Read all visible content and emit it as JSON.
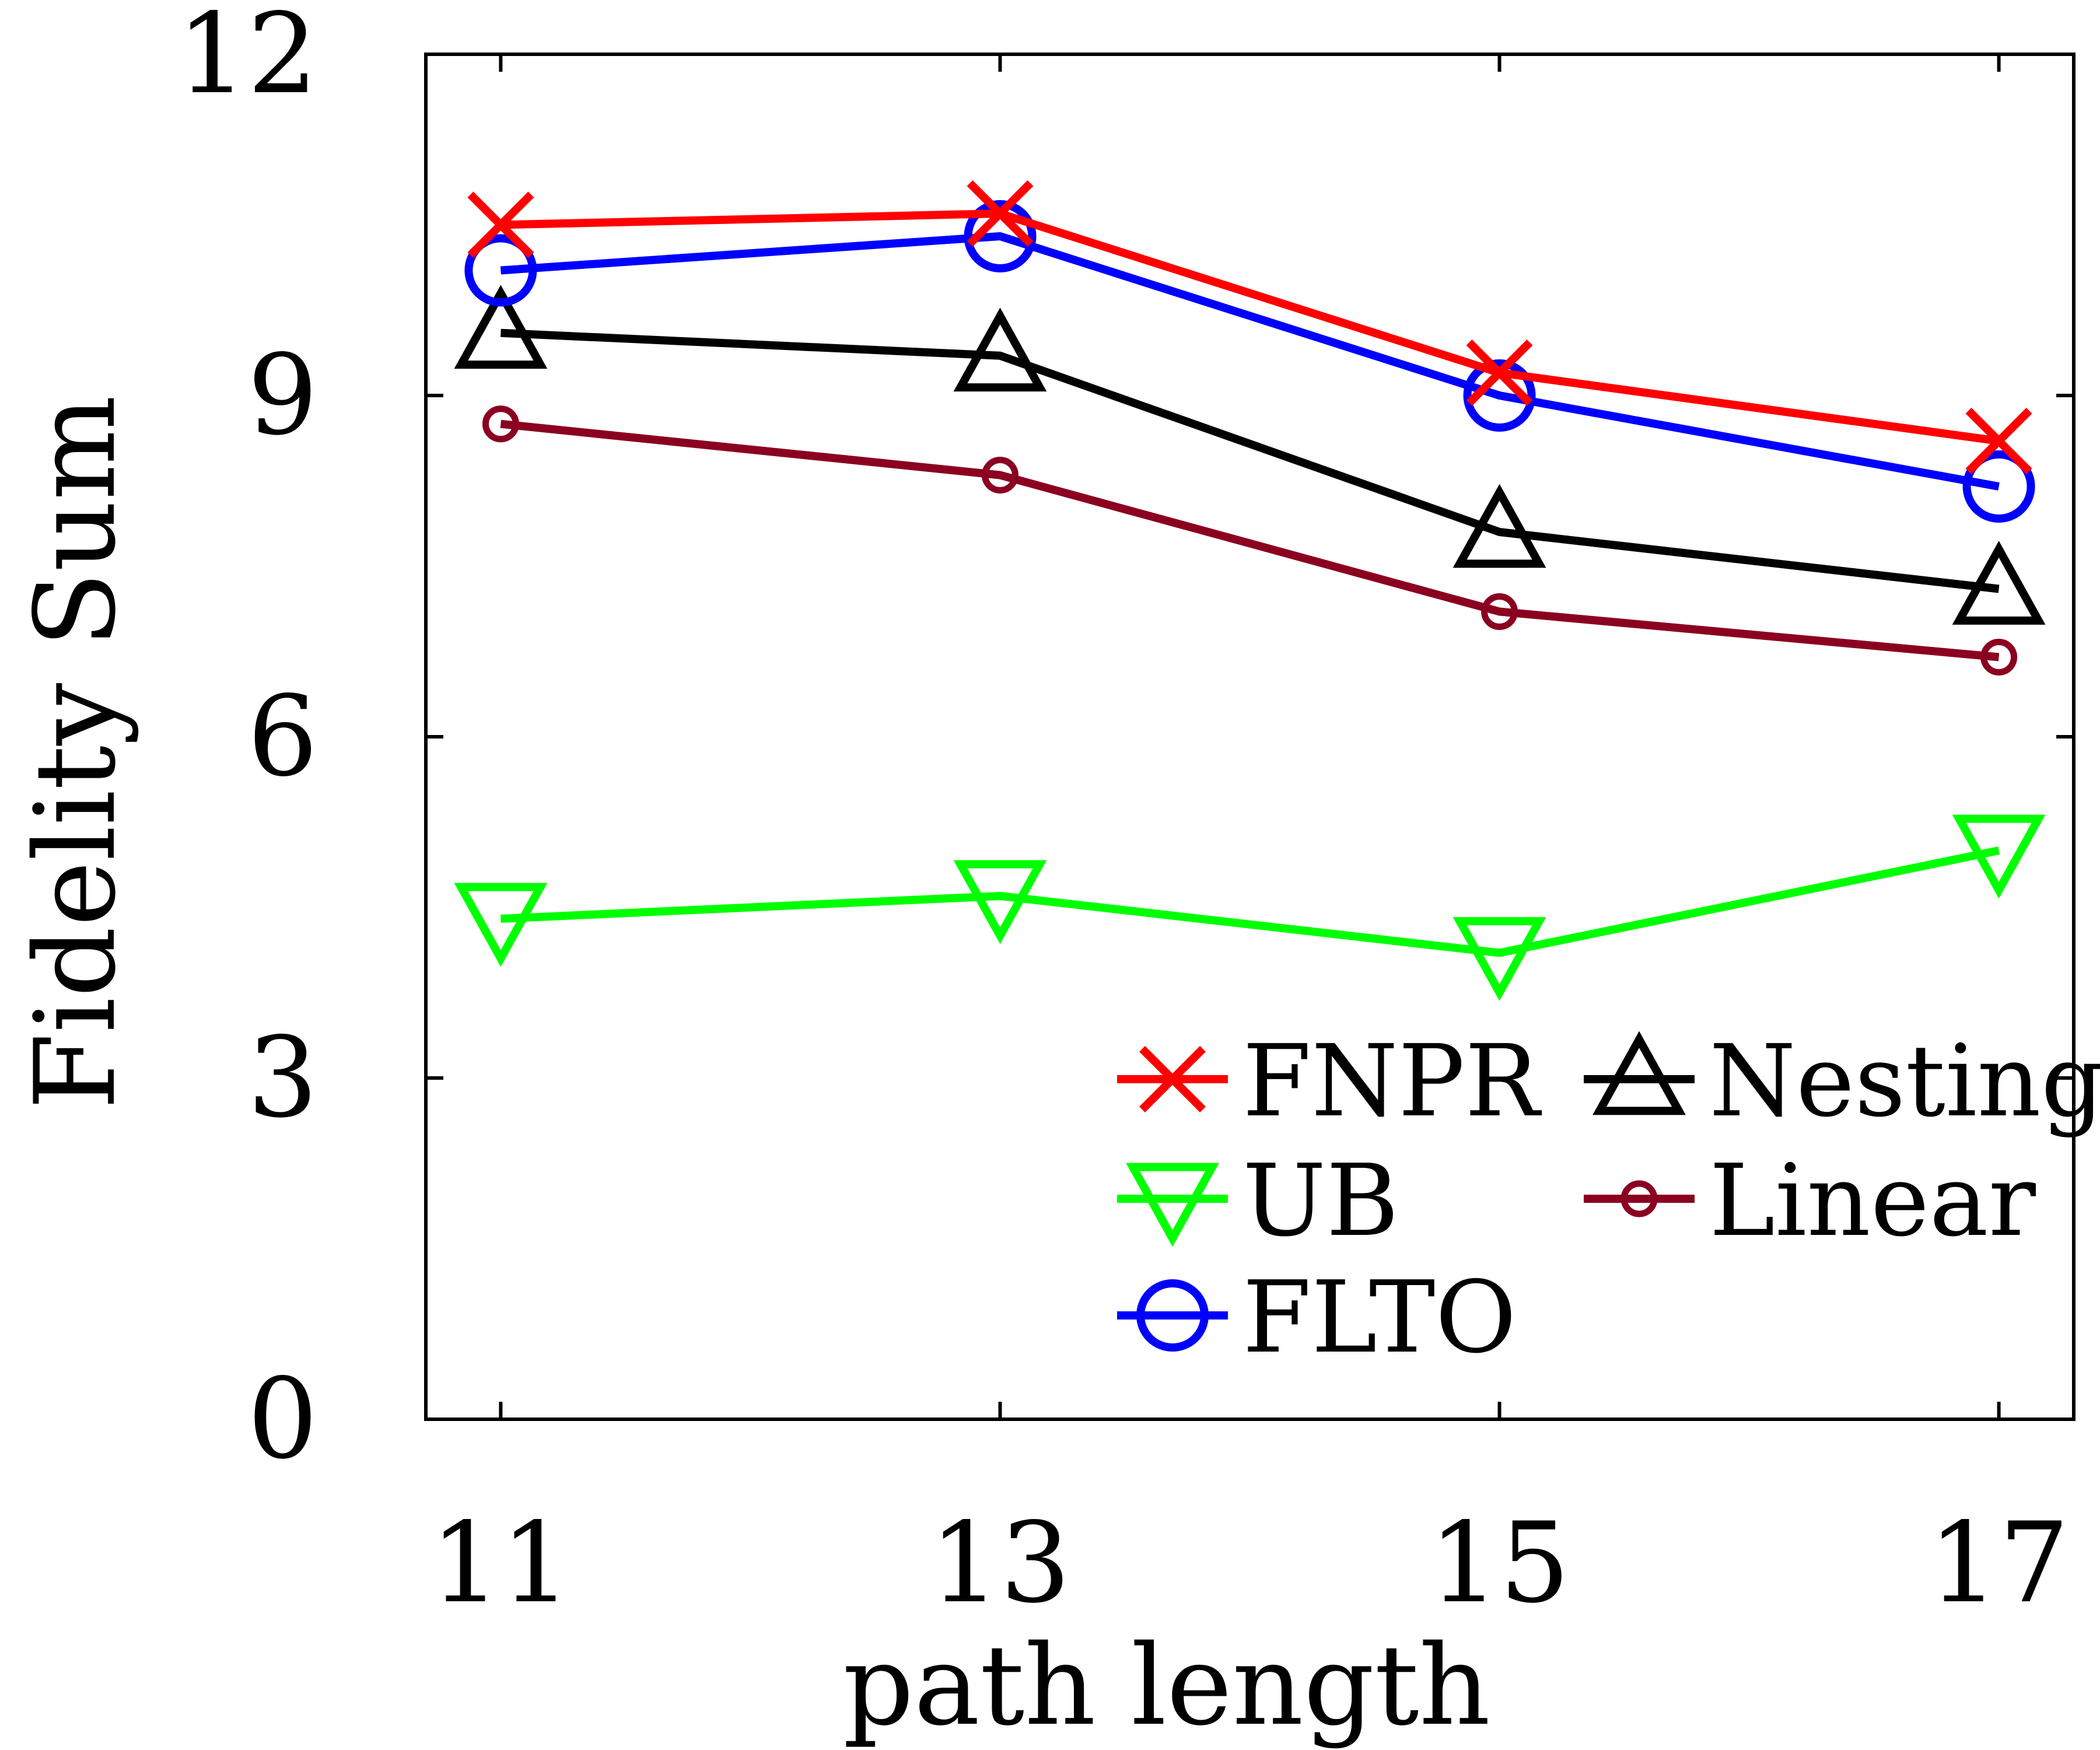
{
  "chart_data": {
    "type": "line",
    "xlabel": "path length",
    "ylabel": "Fidelity Sum",
    "x": [
      11,
      13,
      15,
      17
    ],
    "xticks": [
      "11",
      "13",
      "15",
      "17"
    ],
    "yticks": [
      "0",
      "3",
      "6",
      "9",
      "12"
    ],
    "ylim": [
      0,
      12
    ],
    "grid": false,
    "legend_position": "bottom-right",
    "series": [
      {
        "name": "FNPR",
        "color": "#ff0000",
        "marker": "x",
        "values": [
          10.5,
          10.6,
          9.2,
          8.6
        ]
      },
      {
        "name": "UB",
        "color": "#00ff00",
        "marker": "triangle-down",
        "values": [
          4.4,
          4.6,
          4.1,
          5.0
        ]
      },
      {
        "name": "FLTO",
        "color": "#0000ff",
        "marker": "circle",
        "values": [
          10.1,
          10.4,
          9.0,
          8.2
        ]
      },
      {
        "name": "Nesting",
        "color": "#000000",
        "marker": "triangle-up",
        "values": [
          9.55,
          9.35,
          7.8,
          7.3
        ]
      },
      {
        "name": "Linear",
        "color": "#8b0020",
        "marker": "small-circle",
        "values": [
          8.75,
          8.3,
          7.1,
          6.7
        ]
      }
    ]
  }
}
